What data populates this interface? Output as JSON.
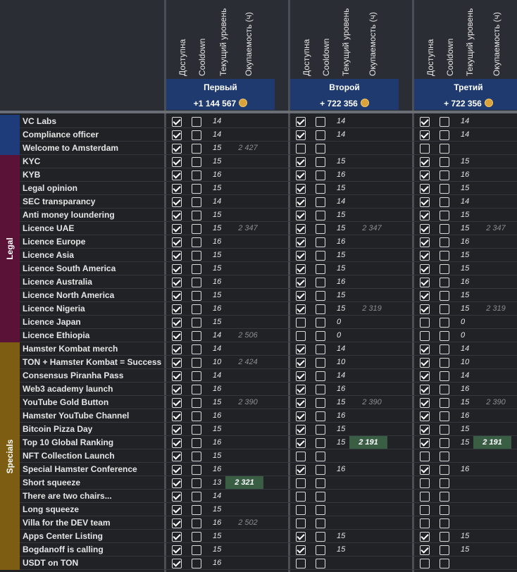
{
  "column_headers": {
    "available": "Доступна",
    "cooldown": "Cooldown",
    "level": "Текущий уровень",
    "payback": "Окупаемость (ч)"
  },
  "groups": [
    {
      "name": "Первый",
      "sum": "+1 144 567"
    },
    {
      "name": "Второй",
      "sum": "+ 722 356"
    },
    {
      "name": "Третий",
      "sum": "+ 722 356"
    }
  ],
  "categories": [
    {
      "label": "",
      "color": "#1f3c7a"
    },
    {
      "label": "Legal",
      "color": "#5a1336"
    },
    {
      "label": "Specials",
      "color": "#7d5d12"
    }
  ],
  "rows": [
    {
      "name": "VC Labs",
      "c": [
        [
          1,
          0,
          "14",
          ""
        ],
        [
          1,
          0,
          "14",
          ""
        ],
        [
          1,
          0,
          "14",
          ""
        ]
      ]
    },
    {
      "name": "Compliance officer",
      "c": [
        [
          1,
          0,
          "14",
          ""
        ],
        [
          1,
          0,
          "14",
          ""
        ],
        [
          1,
          0,
          "14",
          ""
        ]
      ]
    },
    {
      "name": "Welcome to Amsterdam",
      "c": [
        [
          1,
          0,
          "15",
          "2 427"
        ],
        [
          0,
          0,
          "",
          ""
        ],
        [
          0,
          0,
          "",
          ""
        ]
      ]
    },
    {
      "name": "KYC",
      "c": [
        [
          1,
          0,
          "15",
          ""
        ],
        [
          1,
          0,
          "15",
          ""
        ],
        [
          1,
          0,
          "15",
          ""
        ]
      ]
    },
    {
      "name": "KYB",
      "c": [
        [
          1,
          0,
          "16",
          ""
        ],
        [
          1,
          0,
          "16",
          ""
        ],
        [
          1,
          0,
          "16",
          ""
        ]
      ]
    },
    {
      "name": "Legal opinion",
      "c": [
        [
          1,
          0,
          "15",
          ""
        ],
        [
          1,
          0,
          "15",
          ""
        ],
        [
          1,
          0,
          "15",
          ""
        ]
      ]
    },
    {
      "name": "SEC transparancy",
      "c": [
        [
          1,
          0,
          "14",
          ""
        ],
        [
          1,
          0,
          "14",
          ""
        ],
        [
          1,
          0,
          "14",
          ""
        ]
      ]
    },
    {
      "name": "Anti money loundering",
      "c": [
        [
          1,
          0,
          "15",
          ""
        ],
        [
          1,
          0,
          "15",
          ""
        ],
        [
          1,
          0,
          "15",
          ""
        ]
      ]
    },
    {
      "name": "Licence UAE",
      "c": [
        [
          1,
          0,
          "15",
          "2 347"
        ],
        [
          1,
          0,
          "15",
          "2 347"
        ],
        [
          1,
          0,
          "15",
          "2 347"
        ]
      ]
    },
    {
      "name": "Licence Europe",
      "c": [
        [
          1,
          0,
          "16",
          ""
        ],
        [
          1,
          0,
          "16",
          ""
        ],
        [
          1,
          0,
          "16",
          ""
        ]
      ]
    },
    {
      "name": "Licence Asia",
      "c": [
        [
          1,
          0,
          "15",
          ""
        ],
        [
          1,
          0,
          "15",
          ""
        ],
        [
          1,
          0,
          "15",
          ""
        ]
      ]
    },
    {
      "name": "Licence South America",
      "c": [
        [
          1,
          0,
          "15",
          ""
        ],
        [
          1,
          0,
          "15",
          ""
        ],
        [
          1,
          0,
          "15",
          ""
        ]
      ]
    },
    {
      "name": "Licence Australia",
      "c": [
        [
          1,
          0,
          "16",
          ""
        ],
        [
          1,
          0,
          "16",
          ""
        ],
        [
          1,
          0,
          "16",
          ""
        ]
      ]
    },
    {
      "name": "Licence North America",
      "c": [
        [
          1,
          0,
          "15",
          ""
        ],
        [
          1,
          0,
          "15",
          ""
        ],
        [
          1,
          0,
          "15",
          ""
        ]
      ]
    },
    {
      "name": "Licence Nigeria",
      "c": [
        [
          1,
          0,
          "16",
          ""
        ],
        [
          1,
          0,
          "15",
          "2 319"
        ],
        [
          1,
          0,
          "15",
          "2 319"
        ]
      ]
    },
    {
      "name": "Licence Japan",
      "c": [
        [
          1,
          0,
          "15",
          ""
        ],
        [
          0,
          0,
          "0",
          ""
        ],
        [
          0,
          0,
          "0",
          ""
        ]
      ]
    },
    {
      "name": "Licence Ethiopia",
      "c": [
        [
          1,
          0,
          "14",
          "2 506"
        ],
        [
          0,
          0,
          "0",
          ""
        ],
        [
          0,
          0,
          "0",
          ""
        ]
      ]
    },
    {
      "name": "Hamster Kombat merch",
      "c": [
        [
          1,
          0,
          "14",
          ""
        ],
        [
          1,
          0,
          "14",
          ""
        ],
        [
          1,
          0,
          "14",
          ""
        ]
      ]
    },
    {
      "name": "TON + Hamster Kombat = Success",
      "c": [
        [
          1,
          0,
          "10",
          "2 424"
        ],
        [
          1,
          0,
          "10",
          ""
        ],
        [
          1,
          0,
          "10",
          ""
        ]
      ]
    },
    {
      "name": "Consensus Piranha Pass",
      "c": [
        [
          1,
          0,
          "14",
          ""
        ],
        [
          1,
          0,
          "14",
          ""
        ],
        [
          1,
          0,
          "14",
          ""
        ]
      ]
    },
    {
      "name": "Web3 academy launch",
      "c": [
        [
          1,
          0,
          "16",
          ""
        ],
        [
          1,
          0,
          "16",
          ""
        ],
        [
          1,
          0,
          "16",
          ""
        ]
      ]
    },
    {
      "name": "YouTube Gold Button",
      "c": [
        [
          1,
          0,
          "15",
          "2 390"
        ],
        [
          1,
          0,
          "15",
          "2 390"
        ],
        [
          1,
          0,
          "15",
          "2 390"
        ]
      ]
    },
    {
      "name": "Hamster YouTube Channel",
      "c": [
        [
          1,
          0,
          "16",
          ""
        ],
        [
          1,
          0,
          "16",
          ""
        ],
        [
          1,
          0,
          "16",
          ""
        ]
      ]
    },
    {
      "name": "Bitcoin Pizza Day",
      "c": [
        [
          1,
          0,
          "15",
          ""
        ],
        [
          1,
          0,
          "15",
          ""
        ],
        [
          1,
          0,
          "15",
          ""
        ]
      ]
    },
    {
      "name": "Top 10 Global Ranking",
      "c": [
        [
          1,
          0,
          "16",
          ""
        ],
        [
          1,
          0,
          "15",
          "2 191"
        ],
        [
          1,
          0,
          "15",
          "2 191"
        ]
      ]
    },
    {
      "name": "NFT Collection Launch",
      "c": [
        [
          1,
          0,
          "15",
          ""
        ],
        [
          0,
          0,
          "",
          ""
        ],
        [
          0,
          0,
          "",
          ""
        ]
      ]
    },
    {
      "name": "Special Hamster Conference",
      "c": [
        [
          1,
          0,
          "16",
          ""
        ],
        [
          1,
          0,
          "16",
          ""
        ],
        [
          1,
          0,
          "16",
          ""
        ]
      ]
    },
    {
      "name": "Short squeeze",
      "c": [
        [
          1,
          0,
          "13",
          "2 321"
        ],
        [
          0,
          0,
          "",
          ""
        ],
        [
          0,
          0,
          "",
          ""
        ]
      ]
    },
    {
      "name": "There are two chairs...",
      "c": [
        [
          1,
          0,
          "14",
          ""
        ],
        [
          0,
          0,
          "",
          ""
        ],
        [
          0,
          0,
          "",
          ""
        ]
      ]
    },
    {
      "name": "Long squeeze",
      "c": [
        [
          1,
          0,
          "15",
          ""
        ],
        [
          0,
          0,
          "",
          ""
        ],
        [
          0,
          0,
          "",
          ""
        ]
      ]
    },
    {
      "name": "Villa for the DEV team",
      "c": [
        [
          1,
          0,
          "16",
          "2 502"
        ],
        [
          0,
          0,
          "",
          ""
        ],
        [
          0,
          0,
          "",
          ""
        ]
      ]
    },
    {
      "name": "Apps Center Listing",
      "c": [
        [
          1,
          0,
          "15",
          ""
        ],
        [
          1,
          0,
          "15",
          ""
        ],
        [
          1,
          0,
          "15",
          ""
        ]
      ]
    },
    {
      "name": "Bogdanoff is calling",
      "c": [
        [
          1,
          0,
          "15",
          ""
        ],
        [
          1,
          0,
          "15",
          ""
        ],
        [
          1,
          0,
          "15",
          ""
        ]
      ]
    },
    {
      "name": "USDT on TON",
      "c": [
        [
          1,
          0,
          "16",
          ""
        ],
        [
          0,
          0,
          "",
          ""
        ],
        [
          0,
          0,
          "",
          ""
        ]
      ]
    }
  ],
  "highlighted_cells": [
    {
      "row": "Short squeeze",
      "group": "Первый"
    },
    {
      "row": "Top 10 Global Ranking",
      "group": "Второй"
    },
    {
      "row": "Top 10 Global Ranking",
      "group": "Третий"
    }
  ],
  "colors": {
    "background": "#202226",
    "header_band": "#1e3a6e",
    "highlight": "#3a5e44",
    "coin": "#d9a33a"
  }
}
